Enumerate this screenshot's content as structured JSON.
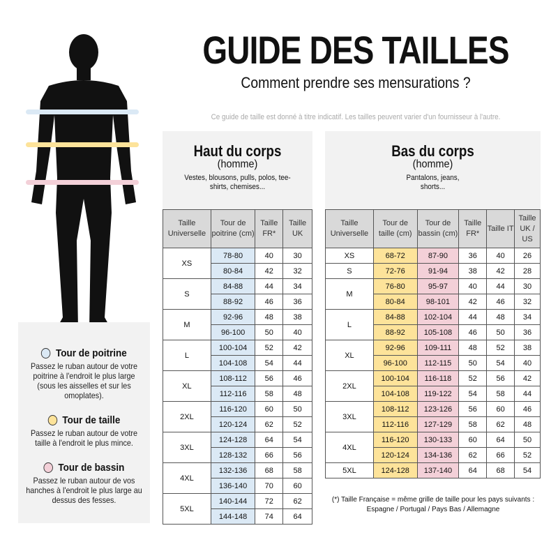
{
  "title": "GUIDE DES TAILLES",
  "subtitle": "Comment prendre ses mensurations ?",
  "note": "Ce guide de taille est donné à titre indicatif. Les tailles peuvent varier d'un fournisseur à l'autre.",
  "colors": {
    "chest": "#dbe9f5",
    "waist": "#fde39a",
    "hip": "#f3d0d8",
    "panel": "#f2f2f2",
    "header": "#d9d9d9"
  },
  "legend": [
    {
      "title": "Tour de poitrine",
      "text": "Passez le ruban autour de votre poitrine à l'endroit le plus large (sous les aisselles et sur les omoplates).",
      "color": "#dbe9f5"
    },
    {
      "title": "Tour de taille",
      "text": "Passez le ruban autour de votre taille à l'endroit le plus mince.",
      "color": "#fde39a"
    },
    {
      "title": "Tour de bassin",
      "text": "Passez le ruban autour de vos hanches à l'endroit le plus large au dessus des fesses.",
      "color": "#f3d0d8"
    }
  ],
  "top": {
    "heading": "Haut du corps",
    "sub": "(homme)",
    "desc": "Vestes, blousons, pulls, polos, tee-shirts, chemises...",
    "columns": [
      "Taille Universelle",
      "Tour de poitrine (cm)",
      "Taille FR*",
      "Taille UK"
    ],
    "groups": [
      {
        "size": "XS",
        "rows": [
          [
            "78-80",
            "40",
            "30"
          ],
          [
            "80-84",
            "42",
            "32"
          ]
        ]
      },
      {
        "size": "S",
        "rows": [
          [
            "84-88",
            "44",
            "34"
          ],
          [
            "88-92",
            "46",
            "36"
          ]
        ]
      },
      {
        "size": "M",
        "rows": [
          [
            "92-96",
            "48",
            "38"
          ],
          [
            "96-100",
            "50",
            "40"
          ]
        ]
      },
      {
        "size": "L",
        "rows": [
          [
            "100-104",
            "52",
            "42"
          ],
          [
            "104-108",
            "54",
            "44"
          ]
        ]
      },
      {
        "size": "XL",
        "rows": [
          [
            "108-112",
            "56",
            "46"
          ],
          [
            "112-116",
            "58",
            "48"
          ]
        ]
      },
      {
        "size": "2XL",
        "rows": [
          [
            "116-120",
            "60",
            "50"
          ],
          [
            "120-124",
            "62",
            "52"
          ]
        ]
      },
      {
        "size": "3XL",
        "rows": [
          [
            "124-128",
            "64",
            "54"
          ],
          [
            "128-132",
            "66",
            "56"
          ]
        ]
      },
      {
        "size": "4XL",
        "rows": [
          [
            "132-136",
            "68",
            "58"
          ],
          [
            "136-140",
            "70",
            "60"
          ]
        ]
      },
      {
        "size": "5XL",
        "rows": [
          [
            "140-144",
            "72",
            "62"
          ],
          [
            "144-148",
            "74",
            "64"
          ]
        ]
      }
    ]
  },
  "bottom": {
    "heading": "Bas du corps",
    "sub": "(homme)",
    "desc": "Pantalons, jeans, shorts...",
    "columns": [
      "Taille Universelle",
      "Tour de taille (cm)",
      "Tour de bassin (cm)",
      "Taille FR*",
      "Taille IT",
      "Taille UK / US"
    ],
    "groups": [
      {
        "size": "XS",
        "rows": [
          [
            "68-72",
            "87-90",
            "36",
            "40",
            "26"
          ]
        ]
      },
      {
        "size": "S",
        "rows": [
          [
            "72-76",
            "91-94",
            "38",
            "42",
            "28"
          ]
        ]
      },
      {
        "size": "M",
        "rows": [
          [
            "76-80",
            "95-97",
            "40",
            "44",
            "30"
          ],
          [
            "80-84",
            "98-101",
            "42",
            "46",
            "32"
          ]
        ]
      },
      {
        "size": "L",
        "rows": [
          [
            "84-88",
            "102-104",
            "44",
            "48",
            "34"
          ],
          [
            "88-92",
            "105-108",
            "46",
            "50",
            "36"
          ]
        ]
      },
      {
        "size": "XL",
        "rows": [
          [
            "92-96",
            "109-111",
            "48",
            "52",
            "38"
          ],
          [
            "96-100",
            "112-115",
            "50",
            "54",
            "40"
          ]
        ]
      },
      {
        "size": "2XL",
        "rows": [
          [
            "100-104",
            "116-118",
            "52",
            "56",
            "42"
          ],
          [
            "104-108",
            "119-122",
            "54",
            "58",
            "44"
          ]
        ]
      },
      {
        "size": "3XL",
        "rows": [
          [
            "108-112",
            "123-126",
            "56",
            "60",
            "46"
          ],
          [
            "112-116",
            "127-129",
            "58",
            "62",
            "48"
          ]
        ]
      },
      {
        "size": "4XL",
        "rows": [
          [
            "116-120",
            "130-133",
            "60",
            "64",
            "50"
          ],
          [
            "120-124",
            "134-136",
            "62",
            "66",
            "52"
          ]
        ]
      },
      {
        "size": "5XL",
        "rows": [
          [
            "124-128",
            "137-140",
            "64",
            "68",
            "54"
          ]
        ]
      }
    ]
  },
  "footnote": "(*) Taille Française = même grille de taille pour les pays suivants : Espagne / Portugal / Pays Bas / Allemagne"
}
